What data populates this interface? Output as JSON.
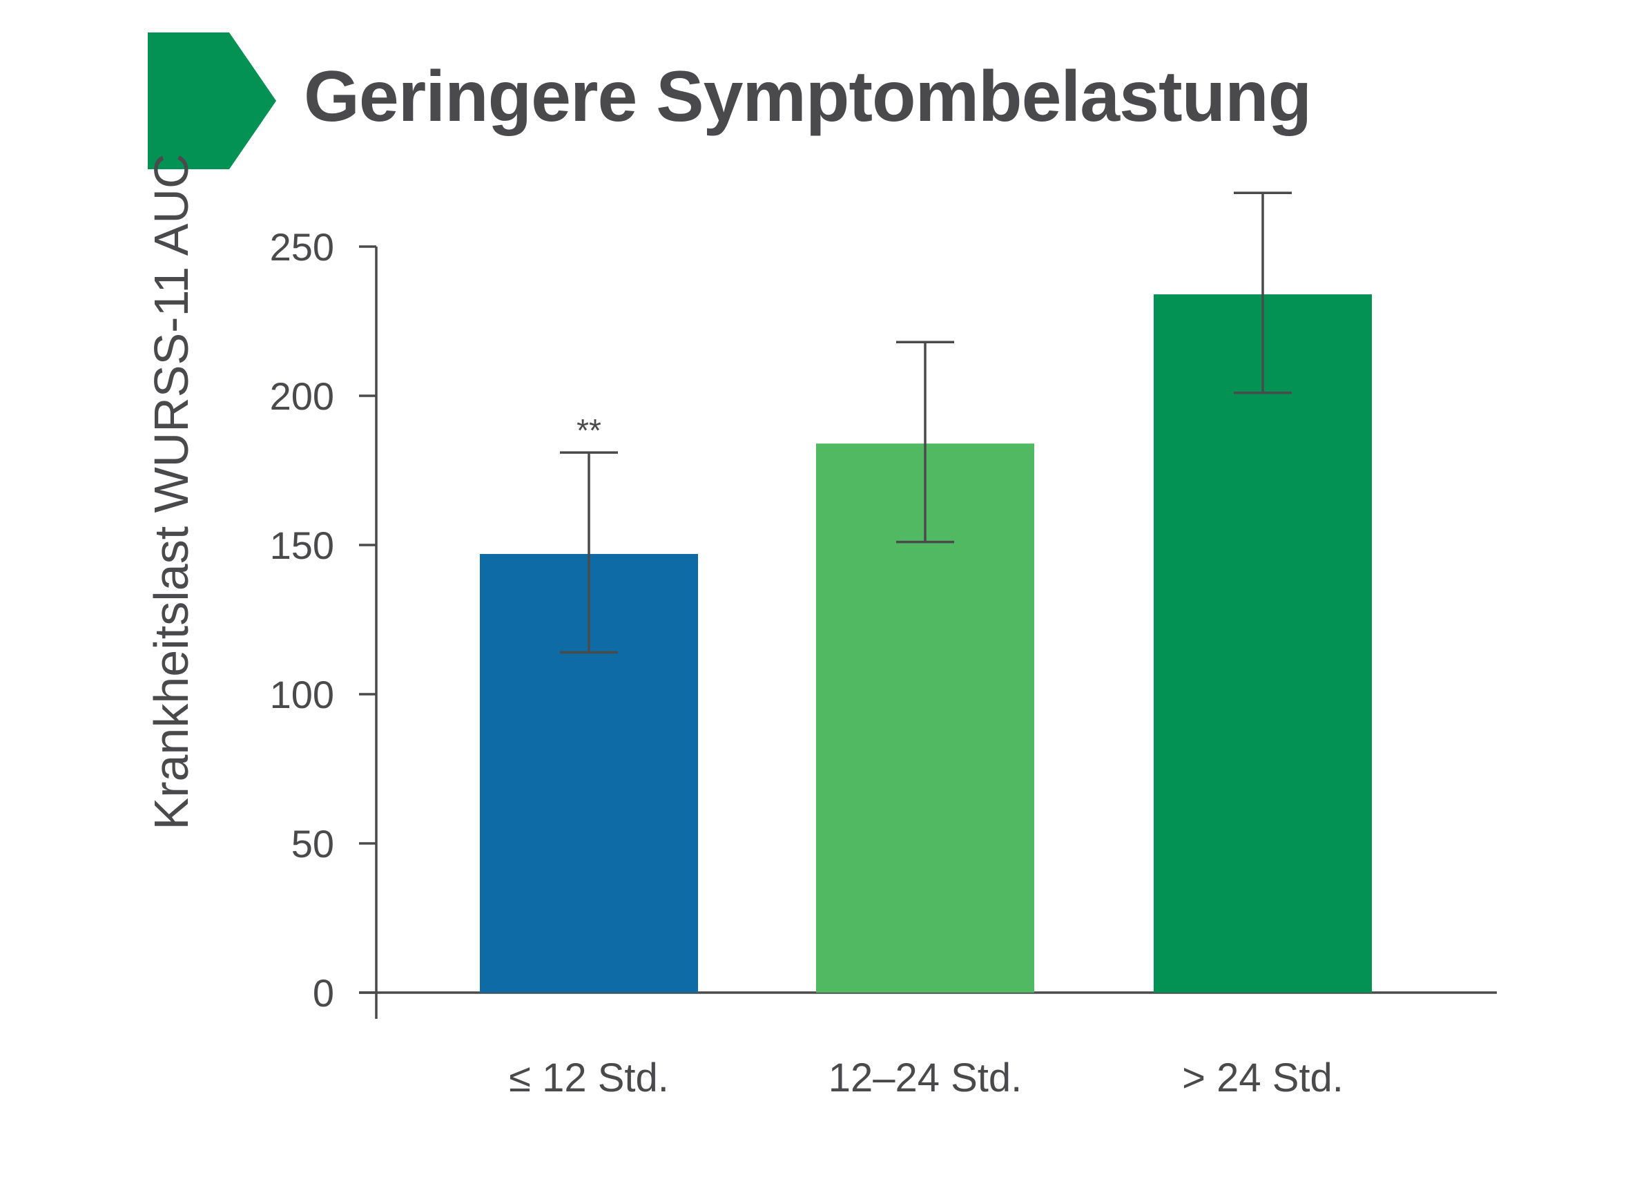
{
  "chart_data": {
    "type": "bar",
    "title": "Geringere Symptombelastung",
    "xlabel": "",
    "ylabel": "Krankheitslast WURSS-11 AUC",
    "ylim": [
      0,
      250
    ],
    "yticks": [
      0,
      50,
      100,
      150,
      200,
      250
    ],
    "categories": [
      "≤ 12 Std.",
      "12–24 Std.",
      "> 24 Std."
    ],
    "values": [
      147,
      184,
      234
    ],
    "error_low": [
      114,
      151,
      201
    ],
    "error_high": [
      181,
      218,
      268
    ],
    "annotations": [
      "**",
      "",
      ""
    ],
    "colors": [
      "#0f6ba5",
      "#52b963",
      "#039154"
    ],
    "grid": false,
    "legend": "none"
  },
  "colors": {
    "accent": "#039154",
    "text": "#4a4a4c",
    "axis": "#4a4a4c"
  }
}
